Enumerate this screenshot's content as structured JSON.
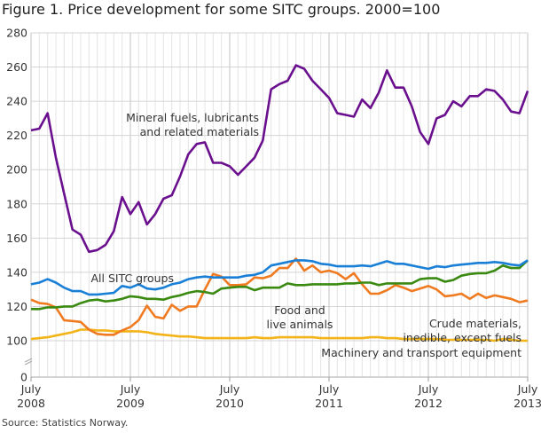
{
  "title": "Figure 1. Price development for some SITC groups. 2000=100",
  "source": "Source: Statistics Norway.",
  "chart_data": {
    "type": "line",
    "title": "Figure 1. Price development for some SITC groups. 2000=100",
    "xlabel": "",
    "ylabel": "",
    "x_start": "2008-07",
    "x_end": "2013-07",
    "frequency": "monthly",
    "x_ticks": [
      {
        "month": "July",
        "year": "2008"
      },
      {
        "month": "July",
        "year": "2009"
      },
      {
        "month": "July",
        "year": "2010"
      },
      {
        "month": "July",
        "year": "2011"
      },
      {
        "month": "July",
        "year": "2012"
      },
      {
        "month": "July",
        "year": "2013"
      }
    ],
    "y_ticks": [
      "0",
      "100",
      "120",
      "140",
      "160",
      "180",
      "200",
      "220",
      "240",
      "260",
      "280"
    ],
    "ylim": [
      0,
      280
    ],
    "y_axis_break": [
      0,
      100
    ],
    "grid": true,
    "series": [
      {
        "name": "Mineral fuels, lubricants and related materials",
        "label_lines": [
          "Mineral fuels, lubricants",
          "and related materials"
        ],
        "color": "#6a0f8e",
        "values": [
          223,
          224,
          233,
          207,
          186,
          165,
          162,
          152,
          153,
          156,
          164,
          184,
          174,
          181,
          168,
          174,
          183,
          185,
          196,
          209,
          215,
          216,
          204,
          204,
          202,
          197,
          202,
          207,
          217,
          247,
          250,
          252,
          261,
          259,
          252,
          247,
          242,
          233,
          232,
          231,
          241,
          236,
          245,
          258,
          248,
          248,
          237,
          222,
          215,
          230,
          232,
          240,
          237,
          243,
          243,
          247,
          246,
          241,
          234,
          233,
          246
        ]
      },
      {
        "name": "All SITC groups",
        "label_lines": [
          "All SITC groups"
        ],
        "color": "#1a7fd6",
        "values": [
          133,
          134,
          136,
          134,
          131,
          129,
          129,
          127,
          127,
          127.5,
          128,
          132,
          131,
          133,
          130.5,
          130,
          131,
          133,
          134,
          136,
          137,
          137.5,
          137,
          137,
          137,
          137,
          138,
          138.5,
          140,
          144,
          145,
          146,
          147,
          147,
          146.5,
          145,
          144.5,
          143.5,
          143.5,
          143.5,
          144,
          143.5,
          145,
          146.5,
          145,
          145,
          144,
          143,
          142,
          143.5,
          143,
          144,
          144.5,
          145,
          145.5,
          145.5,
          146,
          145.5,
          144.5,
          144,
          147
        ]
      },
      {
        "name": "Food and live animals",
        "label_lines": [
          "Food and",
          "live animals"
        ],
        "color": "#3a8a12",
        "values": [
          118.5,
          118.5,
          119.5,
          119.5,
          120,
          120,
          122,
          123.5,
          124,
          123,
          123.5,
          124.5,
          126,
          125.5,
          124.5,
          124.5,
          124,
          125.5,
          126.5,
          128,
          129,
          128.5,
          127.5,
          130.5,
          131,
          131.5,
          131.5,
          129.5,
          131,
          131,
          131,
          133.5,
          132.5,
          132.5,
          133,
          133,
          133,
          133,
          133.5,
          133.5,
          134,
          134,
          132.5,
          133.5,
          133.5,
          133.5,
          133.5,
          136,
          136.5,
          136.5,
          134.5,
          135.5,
          138,
          139,
          139.5,
          139.5,
          141,
          144,
          142.5,
          142.5,
          147
        ]
      },
      {
        "name": "Crude materials, inedible, except fuels",
        "label_lines": [
          "Crude materials,",
          "inedible, except fuels"
        ],
        "color": "#f07a20",
        "values": [
          124,
          122,
          121.5,
          119.5,
          112,
          111.5,
          111,
          106.5,
          104,
          103.5,
          103.5,
          106,
          108,
          112,
          120.5,
          114,
          113,
          121,
          117.5,
          120,
          120,
          130,
          139,
          137.5,
          132.5,
          132.5,
          133,
          137,
          136.5,
          138,
          142.5,
          142.5,
          148,
          141,
          144,
          140,
          141,
          139.5,
          136,
          139.5,
          133,
          127.5,
          127.5,
          129.5,
          132.5,
          131,
          129,
          130.5,
          132,
          130,
          126,
          126.5,
          127.5,
          124.5,
          127.5,
          125,
          126.5,
          125.5,
          124.5,
          122.5,
          123.5
        ]
      },
      {
        "name": "Machinery and transport equipment",
        "label_lines": [
          "Machinery and transport equipment"
        ],
        "color": "#f2b418",
        "values": [
          101,
          101.5,
          102,
          103,
          104,
          105,
          106.5,
          106.5,
          106,
          106,
          105.5,
          105.5,
          105.5,
          105.5,
          105,
          104,
          103.5,
          103,
          102.5,
          102.5,
          102,
          101.5,
          101.5,
          101.5,
          101.5,
          101.5,
          101.5,
          102,
          101.5,
          101.5,
          102,
          102,
          102,
          102,
          102,
          101.5,
          101.5,
          101.5,
          101.5,
          101.5,
          101.5,
          102,
          102,
          101.5,
          101.5,
          101,
          101,
          101,
          101,
          101,
          100.5,
          100.5,
          100.5,
          100.5,
          100.5,
          100.5,
          100,
          101,
          100.5,
          100,
          100
        ]
      }
    ]
  }
}
